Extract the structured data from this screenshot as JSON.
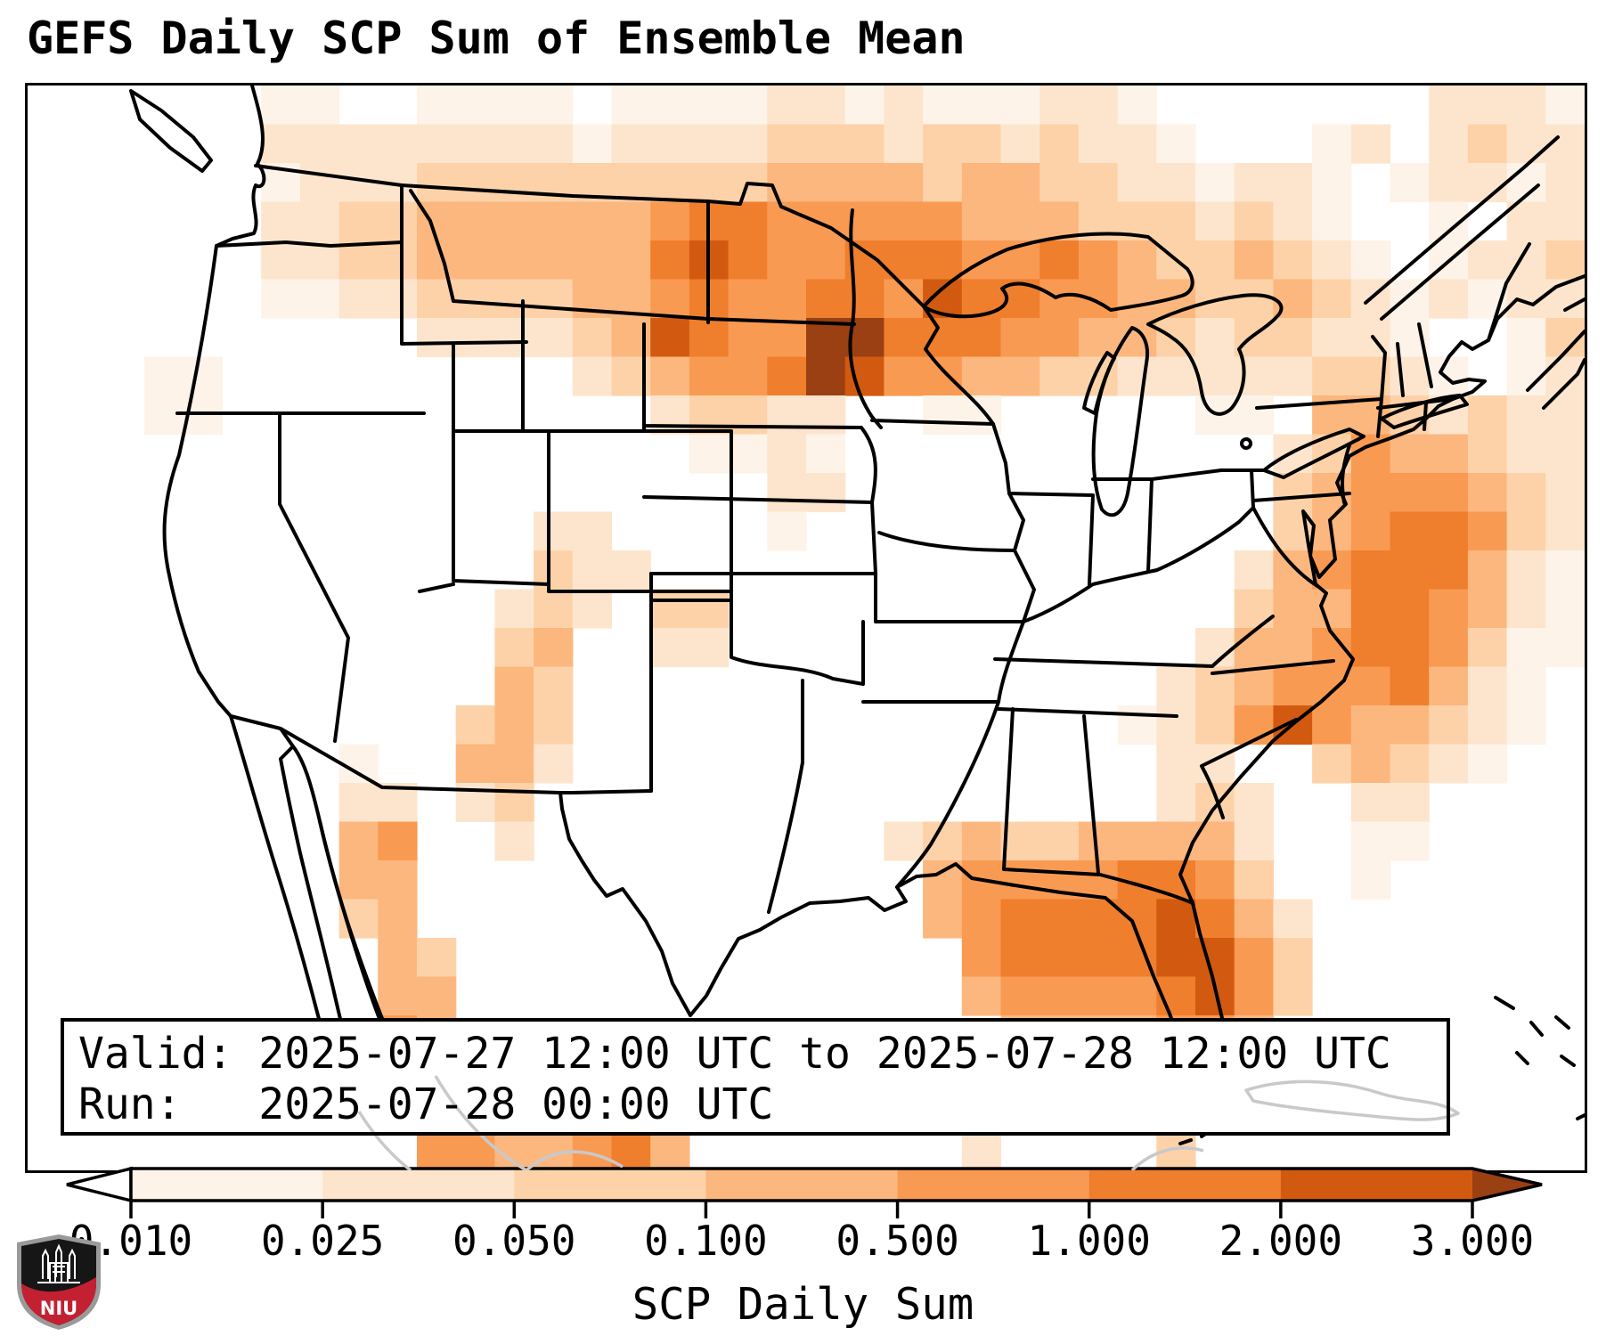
{
  "title": "GEFS Daily SCP Sum of Ensemble Mean",
  "info_box": {
    "line1": "Valid: 2025-07-27 12:00 UTC to 2025-07-28 12:00 UTC",
    "line2": "Run:   2025-07-28 00:00 UTC"
  },
  "colorbar": {
    "title": "SCP Daily Sum",
    "tick_labels": [
      "0.010",
      "0.025",
      "0.050",
      "0.100",
      "0.500",
      "1.000",
      "2.000",
      "3.000"
    ],
    "under_color": "#ffffff",
    "segment_colors": [
      "#fdf3e8",
      "#fde5cd",
      "#fdd2a9",
      "#fcb77e",
      "#f99a53",
      "#ef7e2d",
      "#d25a10"
    ],
    "over_color": "#9a4012",
    "extend": "both"
  },
  "logo": {
    "text": "NIU",
    "red": "#c32032",
    "black": "#161616",
    "silver": "#9a9a9a"
  },
  "chart_data": {
    "type": "heatmap",
    "title": "GEFS Daily SCP Sum of Ensemble Mean",
    "value_label": "SCP Daily Sum",
    "valid": "2025-07-27 12:00 UTC to 2025-07-28 12:00 UTC",
    "run": "2025-07-28 00:00 UTC",
    "levels": [
      0.01,
      0.025,
      0.05,
      0.1,
      0.5,
      1.0,
      2.0,
      3.0
    ],
    "level_palette": {
      "0": "none",
      "1": "#fdf3e8",
      "2": "#fde5cd",
      "3": "#fdd2a9",
      "4": "#fcb77e",
      "5": "#f99a53",
      "6": "#ef7e2d",
      "7": "#d25a10",
      "8": "#9a4012"
    },
    "grid_note": "40x28 grid over CONUS map area; digit = SCP bin index (0=<0.010 white, 1=0.010-0.025, 2=0.025-0.050, 3=0.050-0.100, 4=0.100-0.500, 5=0.500-1.000, 6=1.000-2.000, 7=2.000-3.000, 8=>3.000)",
    "cols": 40,
    "rows": 28,
    "grid": [
      "0000001100111101111221211122100000002221",
      "0000002222222212222333233232210001202322",
      "0000001222333333333444434433221221012212",
      "0000002233444444566555554443332321001022",
      "0000002233444444676556665565433432101223",
      "0000001122333344565566576655443343212122",
      "0000000000222234765588666554432332210013",
      "0001100000000023455687554433222223321012",
      "0001100000000000233220011000001104432322",
      "0000000000000000011210000000000023544322",
      "0000000000000000000220000000000034555432",
      "0000000000000220000100000000000034566532",
      "0000000000000322000000000000000245666421",
      "0000000000002320330000000000000344665421",
      "0000000000003400220000000000002445665311",
      "0000000000004300000000000000023455564210",
      "0000000000034300000000000000123575443210",
      "0000000010044200000000000000022003432100",
      "0000000022023000000000000000023200220000",
      "0000000045002000000000234334444200110000",
      "0000000044000000000000045555665300100000",
      "0000000034000000000000045666676420000000",
      "0000000004300000000000005666677530000000",
      "0000000004400000000000004555567530000000",
      "0000000005400000000000000444455400000000",
      "0000000005400033000000000033044000000000",
      "0000000005540044300000000000033000000000",
      "0000000000554456400000002000030000000000"
    ]
  }
}
